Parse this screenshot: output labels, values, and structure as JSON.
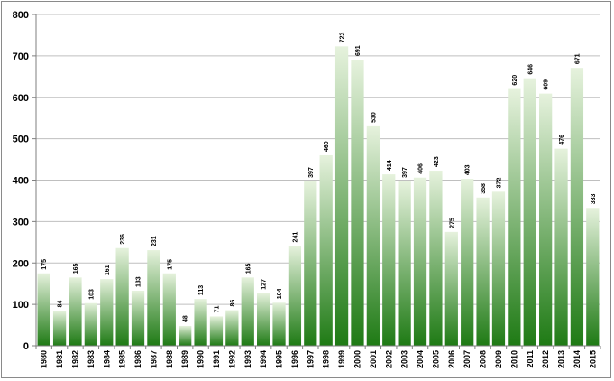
{
  "chart_data": {
    "type": "bar",
    "title": "",
    "xlabel": "",
    "ylabel": "",
    "ylim": [
      0,
      800
    ],
    "yticks": [
      "0",
      "100",
      "200",
      "300",
      "400",
      "500",
      "600",
      "700",
      "800"
    ],
    "grid": true,
    "legend": "none",
    "colors": {
      "bar_top": "#e6f2dd",
      "bar_bottom": "#1e7a14",
      "grid": "#bfbfbf",
      "axis": "#7f7f7f"
    },
    "categories": [
      "1980",
      "1981",
      "1982",
      "1983",
      "1984",
      "1985",
      "1986",
      "1987",
      "1988",
      "1989",
      "1990",
      "1991",
      "1992",
      "1993",
      "1994",
      "1995",
      "1996",
      "1997",
      "1998",
      "1999",
      "2000",
      "2001",
      "2002",
      "2003",
      "2004",
      "2005",
      "2006",
      "2007",
      "2008",
      "2009",
      "2010",
      "2011",
      "2012",
      "2013",
      "2014",
      "2015"
    ],
    "values": [
      175,
      84,
      165,
      103,
      161,
      236,
      133,
      231,
      175,
      48,
      113,
      71,
      86,
      165,
      127,
      104,
      241,
      397,
      460,
      723,
      691,
      530,
      414,
      397,
      406,
      423,
      275,
      403,
      358,
      372,
      620,
      646,
      609,
      476,
      671,
      333
    ],
    "data_labels": [
      "175",
      "84",
      "165",
      "103",
      "161",
      "236",
      "133",
      "231",
      "175",
      "48",
      "113",
      "71",
      "86",
      "165",
      "127",
      "104",
      "241",
      "397",
      "460",
      "723",
      "691",
      "530",
      "414",
      "397",
      "406",
      "423",
      "275",
      "403",
      "358",
      "372",
      "620",
      "646",
      "609",
      "476",
      "671",
      "333"
    ]
  }
}
